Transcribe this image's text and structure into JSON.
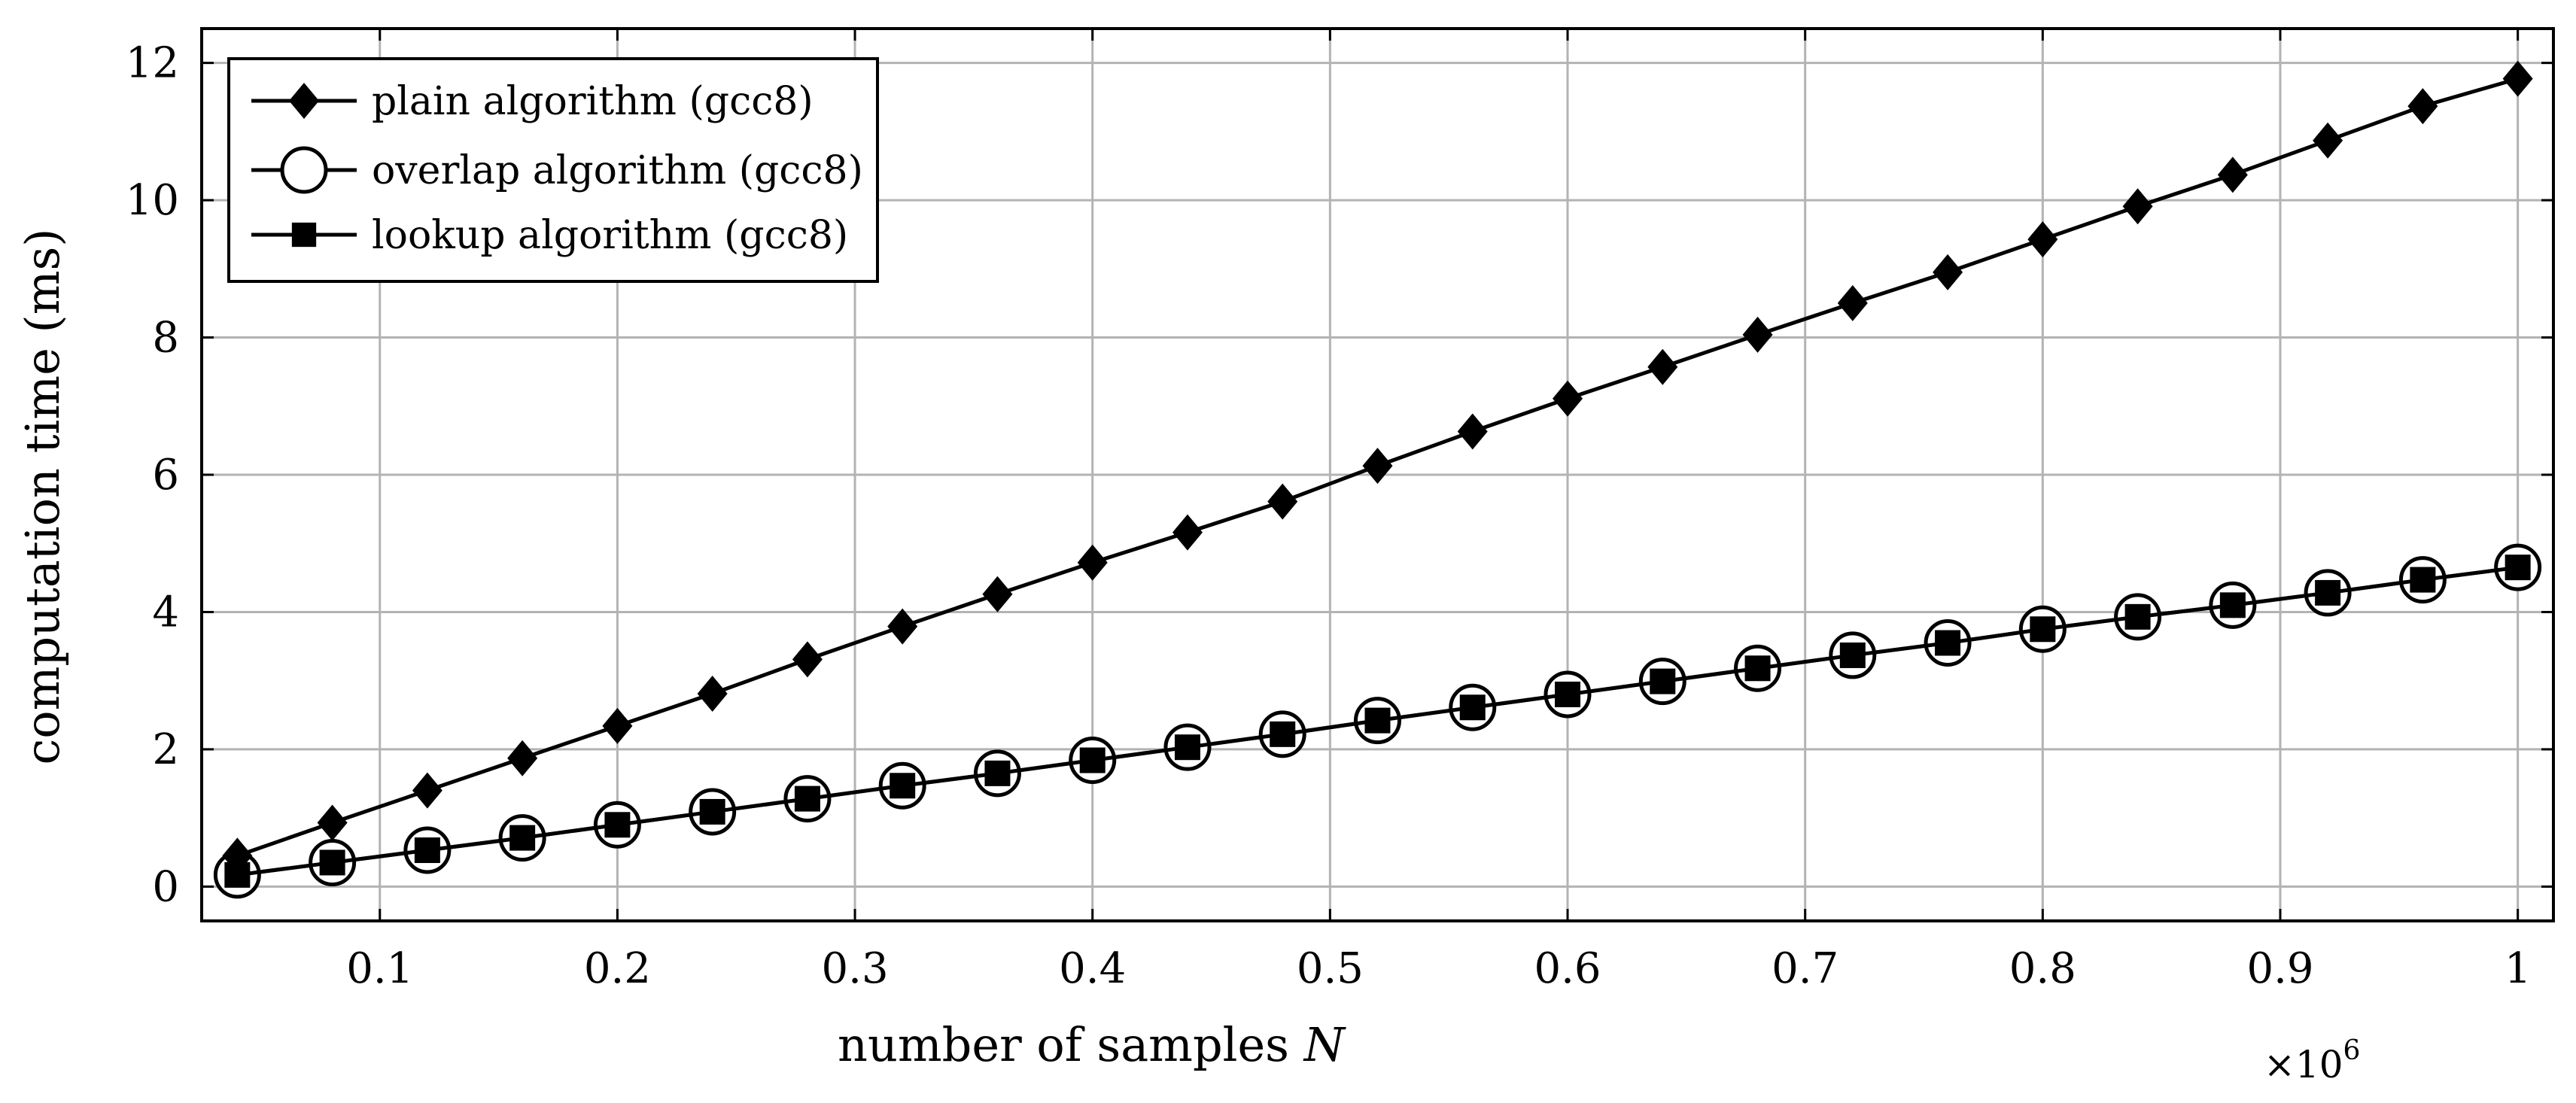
{
  "chart_data": {
    "type": "line",
    "title": "",
    "xlabel": "number of samples",
    "xlabel_var": "N",
    "ylabel": "computation time (ms)",
    "x_multiplier_label": "×10",
    "x_multiplier_exp": "6",
    "xlim": [
      0.025,
      1.015
    ],
    "ylim": [
      -0.5,
      12.5
    ],
    "xticks": [
      0.1,
      0.2,
      0.3,
      0.4,
      0.5,
      0.6,
      0.7,
      0.8,
      0.9,
      1
    ],
    "xtick_labels": [
      "0.1",
      "0.2",
      "0.3",
      "0.4",
      "0.5",
      "0.6",
      "0.7",
      "0.8",
      "0.9",
      "1"
    ],
    "yticks": [
      0,
      2,
      4,
      6,
      8,
      10,
      12
    ],
    "ytick_labels": [
      "0",
      "2",
      "4",
      "6",
      "8",
      "10",
      "12"
    ],
    "grid": true,
    "legend_position": "top-left",
    "x": [
      0.04,
      0.08,
      0.12,
      0.16,
      0.2,
      0.24,
      0.28,
      0.32,
      0.36,
      0.4,
      0.44,
      0.48,
      0.52,
      0.56,
      0.6,
      0.64,
      0.68,
      0.72,
      0.76,
      0.8,
      0.84,
      0.88,
      0.92,
      0.96,
      1.0
    ],
    "series": [
      {
        "name": "plain algorithm (gcc8)",
        "marker": "diamond",
        "values": [
          0.45,
          0.93,
          1.4,
          1.87,
          2.34,
          2.81,
          3.31,
          3.79,
          4.26,
          4.72,
          5.16,
          5.61,
          6.13,
          6.63,
          7.11,
          7.57,
          8.04,
          8.5,
          8.95,
          9.43,
          9.91,
          10.37,
          10.87,
          11.37,
          11.77
        ]
      },
      {
        "name": "overlap algorithm (gcc8)",
        "marker": "circle",
        "values": [
          0.17,
          0.35,
          0.53,
          0.71,
          0.9,
          1.09,
          1.28,
          1.47,
          1.65,
          1.84,
          2.03,
          2.22,
          2.42,
          2.61,
          2.8,
          2.99,
          3.18,
          3.37,
          3.55,
          3.75,
          3.93,
          4.1,
          4.28,
          4.47,
          4.65
        ]
      },
      {
        "name": "lookup algorithm (gcc8)",
        "marker": "square",
        "values": [
          0.17,
          0.35,
          0.53,
          0.71,
          0.9,
          1.09,
          1.28,
          1.47,
          1.65,
          1.84,
          2.03,
          2.22,
          2.42,
          2.61,
          2.8,
          2.99,
          3.18,
          3.37,
          3.55,
          3.75,
          3.93,
          4.1,
          4.28,
          4.47,
          4.65
        ]
      }
    ]
  }
}
